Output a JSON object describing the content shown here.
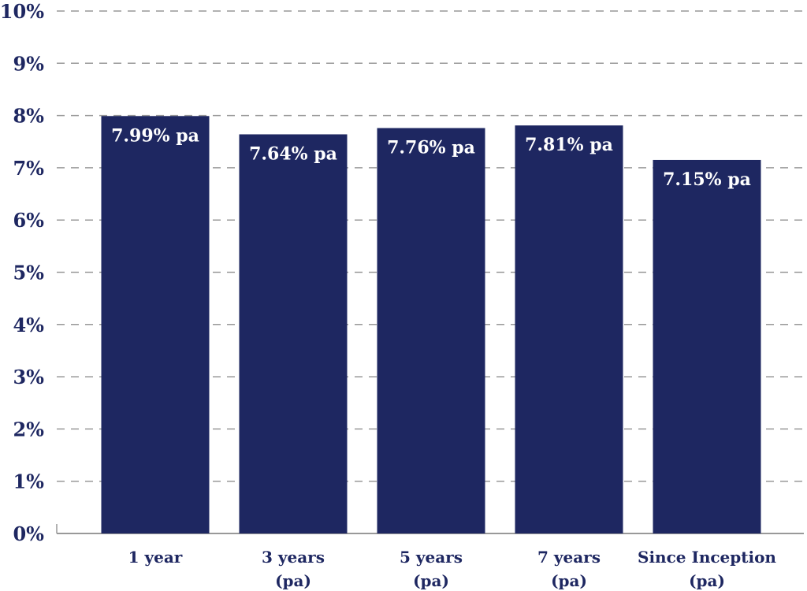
{
  "chart_data": {
    "type": "bar",
    "categories": [
      [
        "1 year"
      ],
      [
        "3 years",
        "(pa)"
      ],
      [
        "5 years",
        "(pa)"
      ],
      [
        "7 years",
        "(pa)"
      ],
      [
        "Since Inception",
        "(pa)"
      ]
    ],
    "values": [
      7.99,
      7.64,
      7.76,
      7.81,
      7.15
    ],
    "data_labels": [
      "7.99% pa",
      "7.64% pa",
      "7.76% pa",
      "7.81% pa",
      "7.15% pa"
    ],
    "y_ticks": [
      "0%",
      "1%",
      "2%",
      "3%",
      "4%",
      "5%",
      "6%",
      "7%",
      "8%",
      "9%",
      "10%"
    ],
    "ylim": [
      0,
      10
    ],
    "grid": "dashed horizontal",
    "legend": "none"
  },
  "colors": {
    "bar": "#1e2761",
    "text": "#1e2761",
    "data_label": "#ffffff",
    "grid": "#999999",
    "axis": "#999999"
  }
}
